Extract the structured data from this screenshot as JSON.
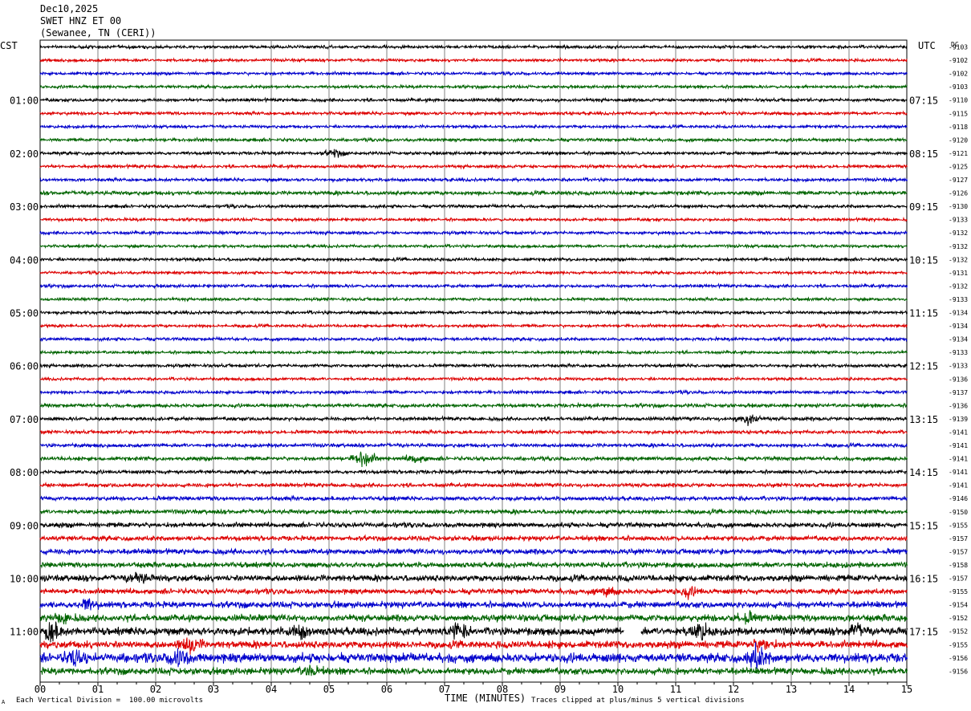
{
  "header": {
    "date": "Dec10,2025",
    "station": "SWET HNZ ET 00",
    "location": "(Sewanee, TN (CERI))"
  },
  "chart_data": {
    "type": "line",
    "plot_kind": "helicorder",
    "left_timezone": "CST",
    "right_timezone": "UTC",
    "dc_label": "DC",
    "left_hour_labels": [
      "01:00",
      "02:00",
      "03:00",
      "04:00",
      "05:00",
      "06:00",
      "07:00",
      "08:00",
      "09:00",
      "10:00",
      "11:00"
    ],
    "right_hour_labels": [
      "07:15",
      "08:15",
      "09:15",
      "10:15",
      "11:15",
      "12:15",
      "13:15",
      "14:15",
      "15:15",
      "16:15",
      "17:15"
    ],
    "dc_offsets": [
      "-9103",
      "-9102",
      "-9102",
      "-9103",
      "-9110",
      "-9115",
      "-9118",
      "-9120",
      "-9121",
      "-9125",
      "-9127",
      "-9126",
      "-9130",
      "-9133",
      "-9132",
      "-9132",
      "-9132",
      "-9131",
      "-9132",
      "-9133",
      "-9134",
      "-9134",
      "-9134",
      "-9133",
      "-9133",
      "-9136",
      "-9137",
      "-9136",
      "-9139",
      "-9141",
      "-9141",
      "-9141",
      "-9141",
      "-9141",
      "-9146",
      "-9150",
      "-9155",
      "-9157",
      "-9157",
      "-9158",
      "-9157",
      "-9155",
      "-9154",
      "-9152",
      "-9152",
      "-9155",
      "-9156",
      "-9156"
    ],
    "x_ticks": [
      "00",
      "01",
      "02",
      "03",
      "04",
      "05",
      "06",
      "07",
      "08",
      "09",
      "10",
      "11",
      "12",
      "13",
      "14",
      "15"
    ],
    "x_range": [
      0,
      15
    ],
    "xlabel": "TIME (MINUTES)",
    "trace_minutes": 15,
    "trace_count": 48,
    "trace_colors": [
      "#000000",
      "#dd0000",
      "#0000cc",
      "#006400"
    ],
    "grid": true,
    "noise_levels": [
      1.2,
      1.2,
      1.2,
      1.2,
      1.3,
      1.3,
      1.2,
      1.3,
      1.3,
      1.3,
      1.3,
      1.6,
      1.3,
      1.2,
      1.3,
      1.2,
      1.3,
      1.2,
      1.3,
      1.2,
      1.3,
      1.2,
      1.3,
      1.2,
      1.3,
      1.2,
      1.3,
      1.5,
      1.5,
      1.4,
      1.5,
      1.6,
      1.5,
      1.6,
      1.7,
      1.8,
      2.0,
      2.0,
      2.2,
      2.2,
      2.6,
      2.2,
      2.6,
      2.8,
      3.2,
      3.0,
      3.8,
      2.8
    ],
    "events": [
      {
        "trace": 8,
        "minute": 5.1,
        "amp": 3
      },
      {
        "trace": 28,
        "minute": 12.25,
        "amp": 6
      },
      {
        "trace": 31,
        "minute": 5.6,
        "amp": 9
      },
      {
        "trace": 31,
        "minute": 6.5,
        "amp": 4
      },
      {
        "trace": 40,
        "minute": 1.7,
        "amp": 5
      },
      {
        "trace": 41,
        "minute": 9.8,
        "amp": 4
      },
      {
        "trace": 41,
        "minute": 11.2,
        "amp": 4
      },
      {
        "trace": 42,
        "minute": 0.8,
        "amp": 5
      },
      {
        "trace": 43,
        "minute": 0.4,
        "amp": 5
      },
      {
        "trace": 43,
        "minute": 12.2,
        "amp": 5
      },
      {
        "trace": 44,
        "minute": 0.2,
        "amp": 9
      },
      {
        "trace": 44,
        "minute": 4.5,
        "amp": 7
      },
      {
        "trace": 44,
        "minute": 7.2,
        "amp": 8
      },
      {
        "trace": 44,
        "minute": 11.4,
        "amp": 8
      },
      {
        "trace": 44,
        "minute": 14.1,
        "amp": 6
      },
      {
        "trace": 45,
        "minute": 2.6,
        "amp": 7
      },
      {
        "trace": 45,
        "minute": 12.5,
        "amp": 6
      },
      {
        "trace": 46,
        "minute": 0.6,
        "amp": 7
      },
      {
        "trace": 46,
        "minute": 2.4,
        "amp": 8
      },
      {
        "trace": 46,
        "minute": 12.4,
        "amp": 10
      },
      {
        "trace": 47,
        "minute": 4.7,
        "amp": 5
      }
    ],
    "gaps": [
      {
        "trace": 44,
        "start_minute": 10.1,
        "end_minute": 10.4
      }
    ]
  },
  "footer": {
    "scale_note": "Each Vertical Division =  100.00 microvolts",
    "clip_note": "Traces clipped at plus/minus 5 vertical divisions",
    "corner_mark": "A"
  }
}
